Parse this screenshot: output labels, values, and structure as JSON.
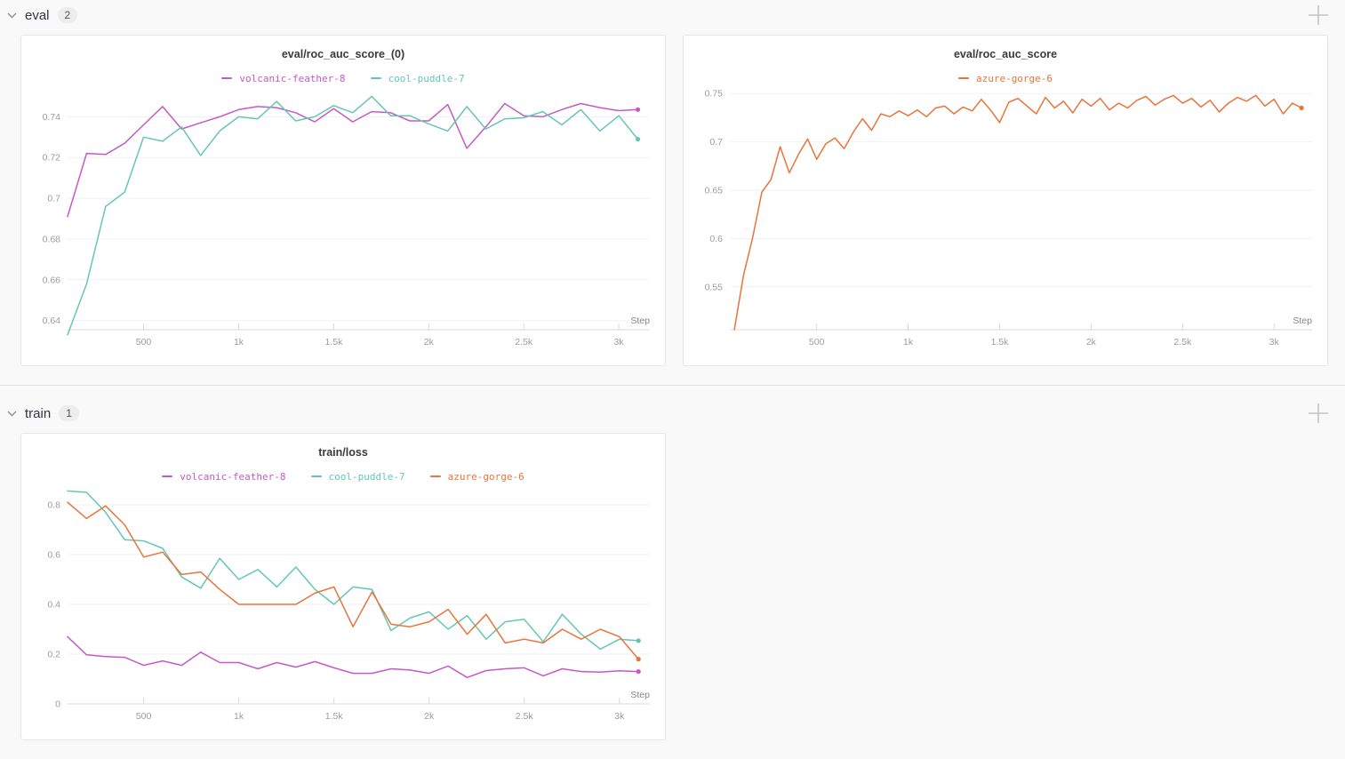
{
  "sections": [
    {
      "name": "eval",
      "count": "2"
    },
    {
      "name": "train",
      "count": "1"
    }
  ],
  "icons": {
    "section_collapse": "chevron-down",
    "section_add": "plus"
  },
  "colors": {
    "magenta": "#c45ac5",
    "teal": "#64c7b2",
    "orange": "#e8743b",
    "grid": "#f1f1f3",
    "axis": "#d8d8dc",
    "tick_text": "#9b9ba3"
  },
  "chart_data": [
    {
      "type": "line",
      "title": "eval/roc_auc_score_(0)",
      "xlabel": "Step",
      "xlim": [
        100,
        3163
      ],
      "ylim": [
        0.6355,
        0.7515
      ],
      "x_ticks": [
        500,
        1000,
        1500,
        2000,
        2500,
        3000
      ],
      "x_tick_labels": [
        "500",
        "1k",
        "1.5k",
        "2k",
        "2.5k",
        "3k"
      ],
      "y_ticks": [
        0.64,
        0.66,
        0.68,
        0.7,
        0.72,
        0.74
      ],
      "y_tick_labels": [
        "0.64",
        "0.66",
        "0.68",
        "0.7",
        "0.72",
        "0.74"
      ],
      "grid": "horizontal",
      "legend_position": "top",
      "series": [
        {
          "name": "volcanic-feather-8",
          "color": "#c45ac5",
          "x_start": 100,
          "x_step": 100,
          "end_dot": true,
          "values": [
            0.691,
            0.722,
            0.7215,
            0.727,
            0.736,
            0.745,
            0.734,
            0.737,
            0.74,
            0.7435,
            0.745,
            0.7445,
            0.742,
            0.7375,
            0.744,
            0.7375,
            0.7425,
            0.742,
            0.738,
            0.738,
            0.746,
            0.7245,
            0.735,
            0.7465,
            0.7405,
            0.74,
            0.7435,
            0.7465,
            0.7445,
            0.743,
            0.7435
          ]
        },
        {
          "name": "cool-puddle-7",
          "color": "#64c7b2",
          "x_start": 100,
          "x_step": 100,
          "end_dot": true,
          "values": [
            0.633,
            0.658,
            0.696,
            0.703,
            0.73,
            0.728,
            0.735,
            0.721,
            0.733,
            0.74,
            0.739,
            0.7475,
            0.738,
            0.74,
            0.7455,
            0.742,
            0.75,
            0.7405,
            0.7405,
            0.7365,
            0.733,
            0.745,
            0.734,
            0.739,
            0.7395,
            0.7425,
            0.736,
            0.7435,
            0.733,
            0.7405,
            0.729
          ]
        }
      ]
    },
    {
      "type": "line",
      "title": "eval/roc_auc_score",
      "xlabel": "Step",
      "xlim": [
        25,
        3208
      ],
      "ylim": [
        0.5057,
        0.7502
      ],
      "x_ticks": [
        500,
        1000,
        1500,
        2000,
        2500,
        3000
      ],
      "x_tick_labels": [
        "500",
        "1k",
        "1.5k",
        "2k",
        "2.5k",
        "3k"
      ],
      "y_ticks": [
        0.55,
        0.6,
        0.65,
        0.7,
        0.75
      ],
      "y_tick_labels": [
        "0.55",
        "0.6",
        "0.65",
        "0.7",
        "0.75"
      ],
      "grid": "horizontal",
      "legend_position": "top",
      "series": [
        {
          "name": "azure-gorge-6",
          "color": "#e8743b",
          "x_start": 50,
          "x_step": 50,
          "end_dot": true,
          "values": [
            0.506,
            0.562,
            0.601,
            0.648,
            0.661,
            0.695,
            0.668,
            0.687,
            0.703,
            0.682,
            0.698,
            0.704,
            0.693,
            0.71,
            0.724,
            0.712,
            0.729,
            0.726,
            0.732,
            0.727,
            0.733,
            0.726,
            0.735,
            0.737,
            0.729,
            0.736,
            0.732,
            0.744,
            0.733,
            0.72,
            0.741,
            0.745,
            0.737,
            0.729,
            0.746,
            0.735,
            0.742,
            0.73,
            0.744,
            0.737,
            0.745,
            0.733,
            0.74,
            0.735,
            0.743,
            0.747,
            0.738,
            0.744,
            0.748,
            0.74,
            0.745,
            0.736,
            0.743,
            0.731,
            0.74,
            0.746,
            0.742,
            0.748,
            0.737,
            0.744,
            0.729,
            0.74,
            0.735
          ]
        }
      ]
    },
    {
      "type": "line",
      "title": "train/loss",
      "xlabel": "Step",
      "xlim": [
        100,
        3160
      ],
      "ylim": [
        0,
        0.8537
      ],
      "x_ticks": [
        500,
        1000,
        1500,
        2000,
        2500,
        3000
      ],
      "x_tick_labels": [
        "500",
        "1k",
        "1.5k",
        "2k",
        "2.5k",
        "3k"
      ],
      "y_ticks": [
        0,
        0.2,
        0.4,
        0.6,
        0.8
      ],
      "y_tick_labels": [
        "0",
        "0.2",
        "0.4",
        "0.6",
        "0.8"
      ],
      "grid": "horizontal",
      "legend_position": "top",
      "series": [
        {
          "name": "volcanic-feather-8",
          "color": "#c45ac5",
          "x_start": 100,
          "x_step": 100,
          "end_dot": true,
          "values": [
            0.27,
            0.197,
            0.19,
            0.187,
            0.155,
            0.173,
            0.155,
            0.208,
            0.166,
            0.166,
            0.141,
            0.166,
            0.148,
            0.17,
            0.145,
            0.123,
            0.123,
            0.141,
            0.136,
            0.123,
            0.152,
            0.106,
            0.134,
            0.141,
            0.145,
            0.113,
            0.141,
            0.13,
            0.128,
            0.133,
            0.13
          ]
        },
        {
          "name": "cool-puddle-7",
          "color": "#64c7b2",
          "x_start": 100,
          "x_step": 100,
          "end_dot": true,
          "values": [
            0.856,
            0.85,
            0.77,
            0.66,
            0.655,
            0.625,
            0.51,
            0.465,
            0.585,
            0.5,
            0.54,
            0.47,
            0.55,
            0.46,
            0.4,
            0.47,
            0.46,
            0.295,
            0.345,
            0.37,
            0.3,
            0.355,
            0.26,
            0.33,
            0.34,
            0.25,
            0.36,
            0.28,
            0.22,
            0.26,
            0.254
          ]
        },
        {
          "name": "azure-gorge-6",
          "color": "#e8743b",
          "x_start": 100,
          "x_step": 100,
          "end_dot": true,
          "values": [
            0.81,
            0.745,
            0.796,
            0.72,
            0.59,
            0.61,
            0.52,
            0.53,
            0.46,
            0.4,
            0.4,
            0.4,
            0.4,
            0.445,
            0.47,
            0.31,
            0.45,
            0.32,
            0.31,
            0.33,
            0.38,
            0.28,
            0.36,
            0.245,
            0.26,
            0.245,
            0.3,
            0.26,
            0.3,
            0.27,
            0.18
          ]
        }
      ]
    }
  ]
}
